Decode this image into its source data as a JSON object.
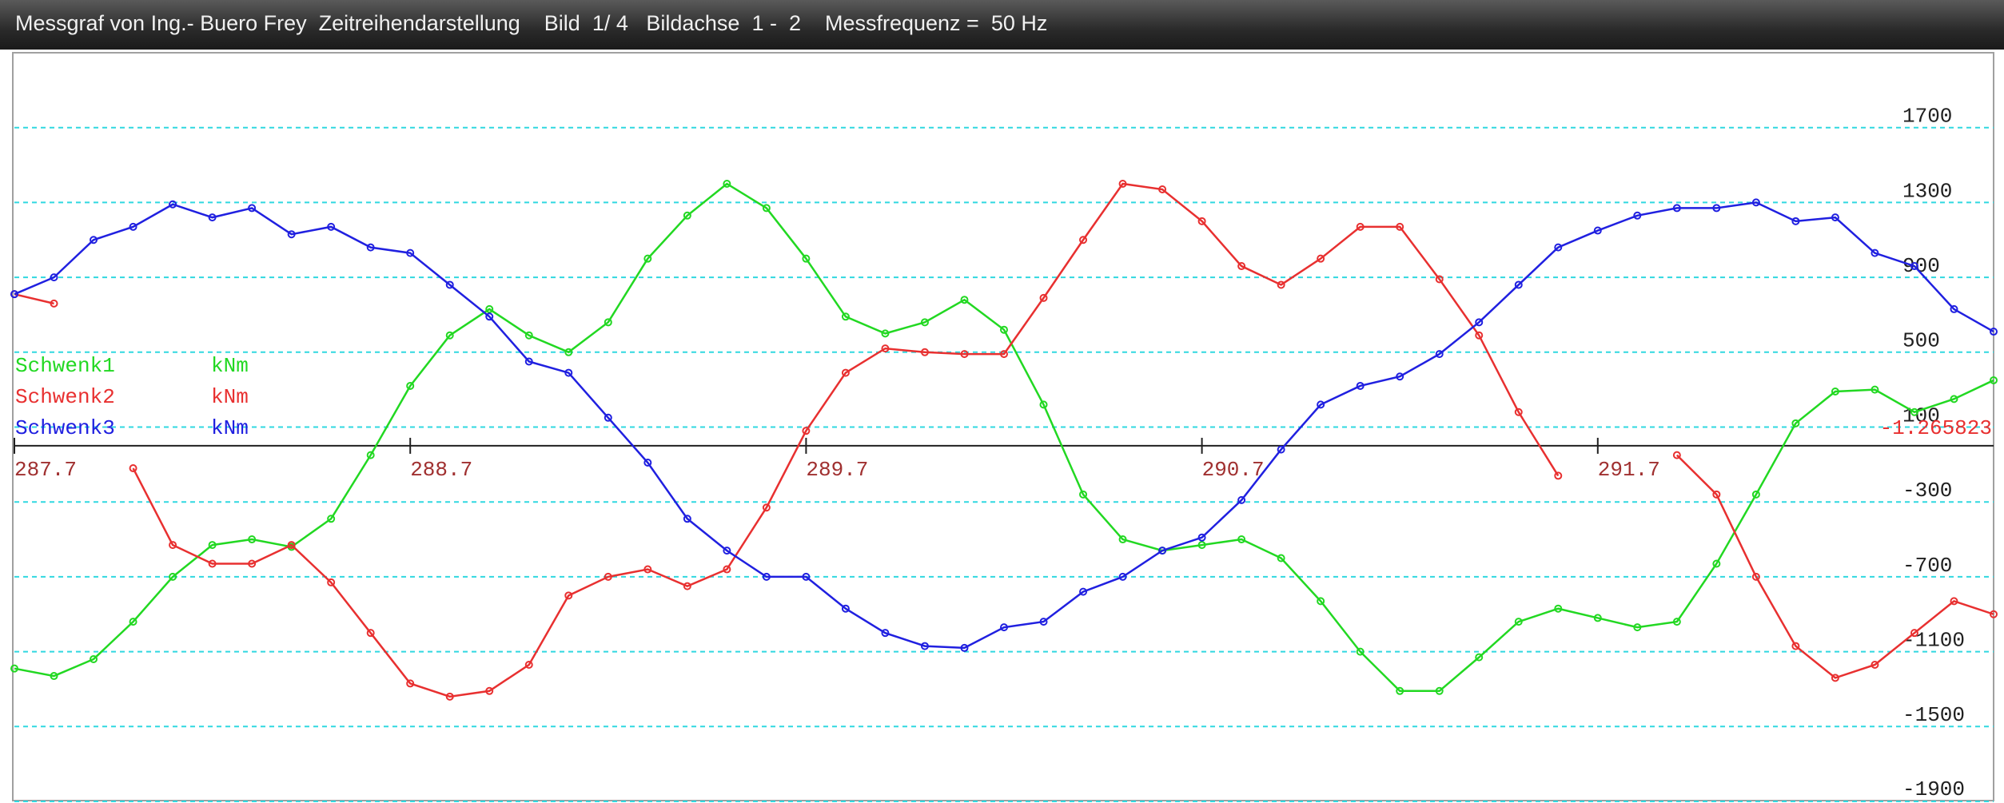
{
  "window_title": "Messgraf von Ing.- Buero Frey  Zeitreihendarstellung    Bild  1/ 4   Bildachse  1 -  2    Messfrequenz =  50 Hz",
  "chart_data": {
    "type": "line",
    "x": [
      287.7,
      287.8,
      287.9,
      288.0,
      288.1,
      288.2,
      288.3,
      288.4,
      288.5,
      288.6,
      288.7,
      288.8,
      288.9,
      289.0,
      289.1,
      289.2,
      289.3,
      289.4,
      289.5,
      289.6,
      289.7,
      289.8,
      289.9,
      290.0,
      290.1,
      290.2,
      290.3,
      290.4,
      290.5,
      290.6,
      290.7,
      290.8,
      290.9,
      291.0,
      291.1,
      291.2,
      291.3,
      291.4,
      291.5,
      291.6,
      291.7,
      291.8,
      291.9,
      292.0,
      292.1,
      292.2,
      292.3,
      292.4,
      292.5,
      292.6,
      292.7
    ],
    "series": [
      {
        "name": "Schwenk1",
        "unit": "kNm",
        "color": "#22d822",
        "values": [
          -1190,
          -1230,
          -1140,
          -940,
          -700,
          -530,
          -500,
          -540,
          -390,
          -50,
          320,
          590,
          730,
          590,
          500,
          660,
          1000,
          1230,
          1400,
          1270,
          1000,
          690,
          600,
          660,
          780,
          620,
          220,
          -260,
          -500,
          -560,
          -530,
          -500,
          -600,
          -830,
          -1100,
          -1310,
          -1310,
          -1130,
          -940,
          -870,
          -920,
          -970,
          -940,
          -630,
          -260,
          120,
          290,
          300,
          180,
          250,
          350
        ]
      },
      {
        "name": "Schwenk2",
        "unit": "kNm",
        "color": "#e83030",
        "values": [
          810,
          760,
          null,
          -120,
          -530,
          -630,
          -630,
          -530,
          -730,
          -1000,
          -1270,
          -1340,
          -1310,
          -1170,
          -800,
          -700,
          -660,
          -750,
          -660,
          -330,
          80,
          390,
          520,
          500,
          490,
          490,
          790,
          1100,
          1400,
          1370,
          1200,
          960,
          860,
          1000,
          1170,
          1170,
          890,
          590,
          180,
          -160,
          null,
          null,
          -50,
          -260,
          -700,
          -1070,
          -1240,
          -1170,
          -1000,
          -830,
          -900
        ]
      },
      {
        "name": "Schwenk3",
        "unit": "kNm",
        "color": "#2020e0",
        "values": [
          810,
          900,
          1100,
          1170,
          1290,
          1220,
          1270,
          1130,
          1170,
          1060,
          1030,
          860,
          690,
          450,
          390,
          150,
          -90,
          -390,
          -560,
          -700,
          -700,
          -870,
          -1000,
          -1070,
          -1080,
          -970,
          -940,
          -780,
          -700,
          -560,
          -490,
          -290,
          -20,
          220,
          320,
          370,
          490,
          660,
          860,
          1060,
          1150,
          1230,
          1270,
          1270,
          1300,
          1200,
          1220,
          1030,
          960,
          730,
          610
        ]
      }
    ],
    "annotation": "-1.265823",
    "xlim": [
      287.7,
      292.7
    ],
    "xticks": [
      287.7,
      288.7,
      289.7,
      290.7,
      291.7
    ],
    "ylim": [
      -1900,
      2100
    ],
    "yticks": [
      1700,
      1300,
      900,
      500,
      100,
      -300,
      -700,
      -1100,
      -1500,
      -1900
    ],
    "grid": true
  }
}
